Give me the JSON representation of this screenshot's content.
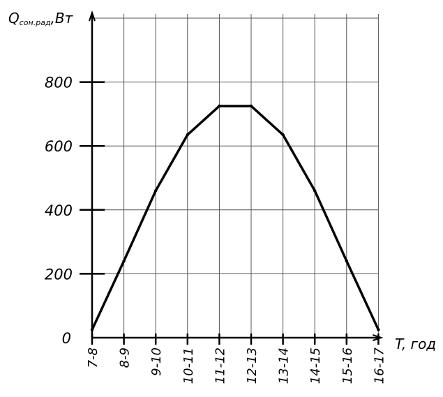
{
  "chart_data": {
    "type": "line",
    "title": "",
    "ylabel_main": "Q",
    "ylabel_sub": "сон.рад",
    "ylabel_unit": ",Вт",
    "xlabel": "T, год",
    "categories": [
      "7-8",
      "8-9",
      "9-10",
      "10-11",
      "11-12",
      "12-13",
      "13-14",
      "14-15",
      "15-16",
      "16-17"
    ],
    "series": [
      {
        "values": [
          25,
          240,
          460,
          635,
          725,
          725,
          635,
          460,
          240,
          25
        ]
      }
    ],
    "yticks": [
      0,
      200,
      400,
      600,
      800
    ],
    "ylim": [
      0,
      1000
    ],
    "grid": true,
    "legend": "none"
  }
}
